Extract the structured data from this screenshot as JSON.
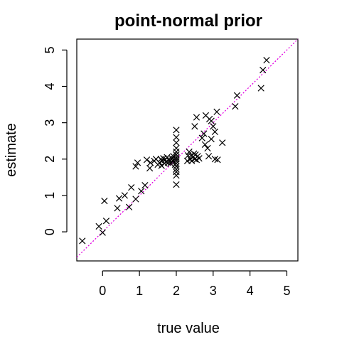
{
  "chart_data": {
    "type": "scatter",
    "title": "point-normal prior",
    "xlabel": "true value",
    "ylabel": "estimate",
    "xlim": [
      -0.7,
      5.3
    ],
    "ylim": [
      -0.8,
      5.3
    ],
    "xticks": [
      0,
      1,
      2,
      3,
      4,
      5
    ],
    "yticks": [
      0,
      1,
      2,
      3,
      4,
      5
    ],
    "marker": "x",
    "point_color": "#000000",
    "reference_line": {
      "intercept": 0,
      "slope": 1,
      "style": "dotted",
      "color": "#e000e0"
    },
    "grid": false,
    "points": [
      [
        -0.55,
        -0.25
      ],
      [
        -0.1,
        0.15
      ],
      [
        0.0,
        -0.02
      ],
      [
        0.05,
        0.85
      ],
      [
        0.1,
        0.3
      ],
      [
        0.4,
        0.65
      ],
      [
        0.45,
        0.92
      ],
      [
        0.6,
        1.0
      ],
      [
        0.72,
        0.68
      ],
      [
        0.78,
        1.22
      ],
      [
        0.9,
        0.9
      ],
      [
        0.9,
        1.8
      ],
      [
        0.95,
        1.9
      ],
      [
        1.05,
        1.12
      ],
      [
        1.15,
        1.28
      ],
      [
        1.2,
        1.98
      ],
      [
        1.28,
        1.75
      ],
      [
        1.3,
        1.9
      ],
      [
        1.4,
        1.95
      ],
      [
        1.45,
        2.0
      ],
      [
        1.5,
        1.85
      ],
      [
        1.55,
        1.9
      ],
      [
        1.58,
        2.0
      ],
      [
        1.6,
        1.82
      ],
      [
        1.62,
        1.95
      ],
      [
        1.65,
        2.02
      ],
      [
        1.68,
        1.88
      ],
      [
        1.7,
        1.98
      ],
      [
        1.72,
        1.92
      ],
      [
        1.75,
        2.05
      ],
      [
        1.78,
        1.9
      ],
      [
        1.8,
        2.0
      ],
      [
        1.82,
        1.95
      ],
      [
        1.85,
        1.88
      ],
      [
        1.88,
        2.02
      ],
      [
        1.9,
        1.96
      ],
      [
        1.92,
        2.08
      ],
      [
        1.95,
        2.0
      ],
      [
        1.97,
        1.85
      ],
      [
        2.0,
        1.3
      ],
      [
        2.0,
        1.55
      ],
      [
        2.0,
        1.65
      ],
      [
        2.0,
        1.72
      ],
      [
        2.0,
        1.8
      ],
      [
        2.0,
        1.88
      ],
      [
        2.0,
        1.95
      ],
      [
        2.0,
        2.0
      ],
      [
        2.0,
        2.05
      ],
      [
        2.0,
        2.12
      ],
      [
        2.0,
        2.2
      ],
      [
        2.0,
        2.3
      ],
      [
        2.0,
        2.45
      ],
      [
        2.0,
        2.6
      ],
      [
        2.0,
        2.8
      ],
      [
        2.3,
        1.95
      ],
      [
        2.32,
        2.1
      ],
      [
        2.35,
        2.2
      ],
      [
        2.38,
        2.0
      ],
      [
        2.4,
        2.1
      ],
      [
        2.42,
        1.95
      ],
      [
        2.45,
        2.05
      ],
      [
        2.48,
        2.15
      ],
      [
        2.5,
        2.0
      ],
      [
        2.5,
        2.9
      ],
      [
        2.52,
        2.12
      ],
      [
        2.55,
        1.98
      ],
      [
        2.55,
        3.15
      ],
      [
        2.58,
        2.08
      ],
      [
        2.62,
        2.02
      ],
      [
        2.7,
        2.58
      ],
      [
        2.75,
        2.7
      ],
      [
        2.78,
        2.4
      ],
      [
        2.8,
        3.2
      ],
      [
        2.85,
        2.3
      ],
      [
        2.88,
        2.08
      ],
      [
        2.9,
        3.1
      ],
      [
        2.95,
        2.55
      ],
      [
        2.95,
        3.05
      ],
      [
        3.0,
        2.9
      ],
      [
        3.05,
        2.75
      ],
      [
        3.05,
        2.0
      ],
      [
        3.1,
        3.3
      ],
      [
        3.12,
        1.98
      ],
      [
        3.25,
        2.45
      ],
      [
        3.6,
        3.45
      ],
      [
        3.65,
        3.75
      ],
      [
        4.3,
        3.95
      ],
      [
        4.35,
        4.45
      ],
      [
        4.45,
        4.72
      ]
    ]
  }
}
